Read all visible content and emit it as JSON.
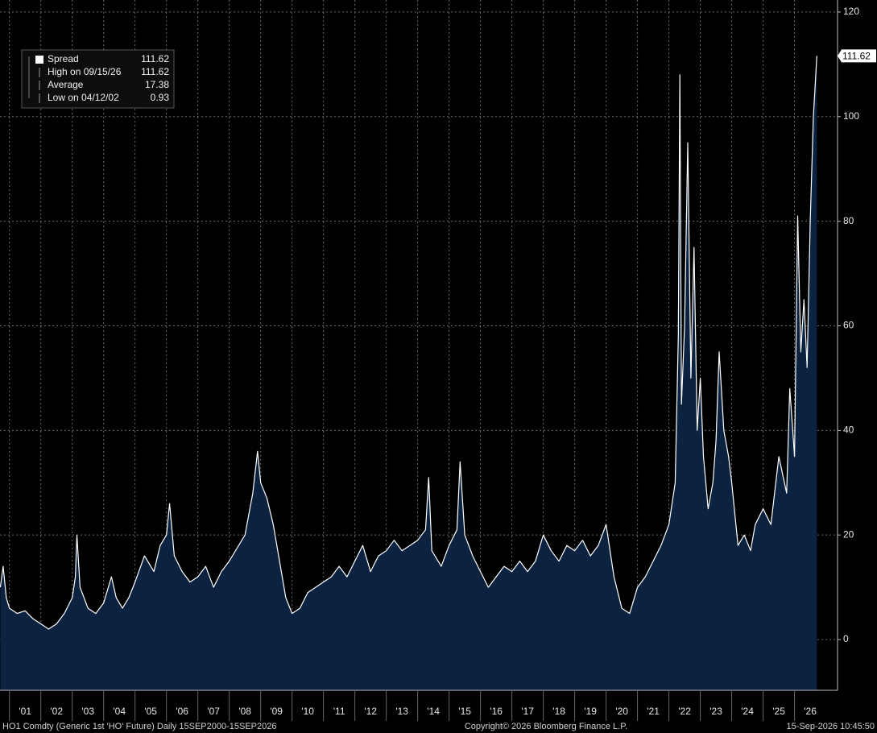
{
  "chart_data": {
    "type": "area",
    "footer_left": "HO1 Comdty (Generic 1st 'HO' Future) Daily 15SEP2000-15SEP2026",
    "footer_center": "Copyright© 2026 Bloomberg Finance L.P.",
    "footer_right": "15-Sep-2026 10:45:50",
    "legend": [
      {
        "label": "Spread",
        "value": 111.62
      },
      {
        "label": "High on 09/15/26",
        "value": 111.62
      },
      {
        "label": "Average",
        "value": 17.38
      },
      {
        "label": "Low on 04/12/02",
        "value": 0.93
      }
    ],
    "grid": true,
    "xlim": [
      2000.7,
      2027.37
    ],
    "ylim": [
      -9.7,
      122.3
    ],
    "yticks": [
      0,
      20,
      40,
      60,
      80,
      100,
      120
    ],
    "xticks": [
      {
        "value": 2001,
        "label": "'01"
      },
      {
        "value": 2002,
        "label": "'02"
      },
      {
        "value": 2003,
        "label": "'03"
      },
      {
        "value": 2004,
        "label": "'04"
      },
      {
        "value": 2005,
        "label": "'05"
      },
      {
        "value": 2006,
        "label": "'06"
      },
      {
        "value": 2007,
        "label": "'07"
      },
      {
        "value": 2008,
        "label": "'08"
      },
      {
        "value": 2009,
        "label": "'09"
      },
      {
        "value": 2010,
        "label": "'10"
      },
      {
        "value": 2011,
        "label": "'11"
      },
      {
        "value": 2012,
        "label": "'12"
      },
      {
        "value": 2013,
        "label": "'13"
      },
      {
        "value": 2014,
        "label": "'14"
      },
      {
        "value": 2015,
        "label": "'15"
      },
      {
        "value": 2016,
        "label": "'16"
      },
      {
        "value": 2017,
        "label": "'17"
      },
      {
        "value": 2018,
        "label": "'18"
      },
      {
        "value": 2019,
        "label": "'19"
      },
      {
        "value": 2020,
        "label": "'20"
      },
      {
        "value": 2021,
        "label": "'21"
      },
      {
        "value": 2022,
        "label": "'22"
      },
      {
        "value": 2023,
        "label": "'23"
      },
      {
        "value": 2024,
        "label": "'24"
      },
      {
        "value": 2025,
        "label": "'25"
      },
      {
        "value": 2026,
        "label": "'26"
      }
    ],
    "series": [
      {
        "name": "Spread",
        "color": "#ffffff",
        "fill": "#0b2240",
        "x": [
          2000.71,
          2000.8,
          2000.9,
          2001.0,
          2001.25,
          2001.5,
          2001.75,
          2002.0,
          2002.25,
          2002.5,
          2002.75,
          2003.0,
          2003.1,
          2003.15,
          2003.25,
          2003.5,
          2003.75,
          2004.0,
          2004.25,
          2004.4,
          2004.6,
          2004.8,
          2005.0,
          2005.3,
          2005.6,
          2005.8,
          2006.0,
          2006.1,
          2006.25,
          2006.5,
          2006.75,
          2007.0,
          2007.25,
          2007.5,
          2007.75,
          2008.0,
          2008.3,
          2008.5,
          2008.75,
          2008.9,
          2009.0,
          2009.2,
          2009.4,
          2009.6,
          2009.8,
          2010.0,
          2010.25,
          2010.5,
          2010.75,
          2011.0,
          2011.25,
          2011.5,
          2011.75,
          2012.0,
          2012.25,
          2012.5,
          2012.75,
          2013.0,
          2013.25,
          2013.5,
          2013.75,
          2014.0,
          2014.25,
          2014.35,
          2014.45,
          2014.75,
          2015.0,
          2015.25,
          2015.35,
          2015.5,
          2015.75,
          2016.0,
          2016.25,
          2016.5,
          2016.75,
          2017.0,
          2017.25,
          2017.5,
          2017.75,
          2018.0,
          2018.25,
          2018.5,
          2018.75,
          2019.0,
          2019.25,
          2019.5,
          2019.75,
          2020.0,
          2020.25,
          2020.5,
          2020.75,
          2021.0,
          2021.25,
          2021.5,
          2021.75,
          2022.0,
          2022.2,
          2022.3,
          2022.35,
          2022.4,
          2022.5,
          2022.6,
          2022.7,
          2022.8,
          2022.9,
          2023.0,
          2023.1,
          2023.25,
          2023.4,
          2023.5,
          2023.6,
          2023.75,
          2023.9,
          2024.0,
          2024.2,
          2024.4,
          2024.6,
          2024.75,
          2025.0,
          2025.25,
          2025.5,
          2025.75,
          2025.85,
          2026.0,
          2026.1,
          2026.2,
          2026.3,
          2026.4,
          2026.5,
          2026.6,
          2026.71
        ],
        "values": [
          10,
          14,
          8,
          6,
          5,
          5.5,
          4,
          3,
          2,
          3,
          5,
          8,
          12,
          20,
          10,
          6,
          5,
          7,
          12,
          8,
          6,
          8,
          11,
          16,
          13,
          18,
          20,
          26,
          16,
          13,
          11,
          12,
          14,
          10,
          13,
          15,
          18,
          20,
          28,
          36,
          30,
          27,
          22,
          15,
          8,
          5,
          6,
          9,
          10,
          11,
          12,
          14,
          12,
          15,
          18,
          13,
          16,
          17,
          19,
          17,
          18,
          19,
          21,
          31,
          17,
          14,
          18,
          21,
          34,
          20,
          16,
          13,
          10,
          12,
          14,
          13,
          15,
          13,
          15,
          20,
          17,
          15,
          18,
          17,
          19,
          16,
          18,
          22,
          12,
          6,
          5,
          10,
          12,
          15,
          18,
          22,
          30,
          58,
          108,
          45,
          60,
          95,
          50,
          75,
          40,
          50,
          35,
          25,
          30,
          38,
          55,
          40,
          35,
          30,
          18,
          20,
          17,
          22,
          25,
          22,
          35,
          28,
          48,
          35,
          81,
          55,
          65,
          52,
          80,
          100,
          111.62
        ]
      }
    ]
  }
}
